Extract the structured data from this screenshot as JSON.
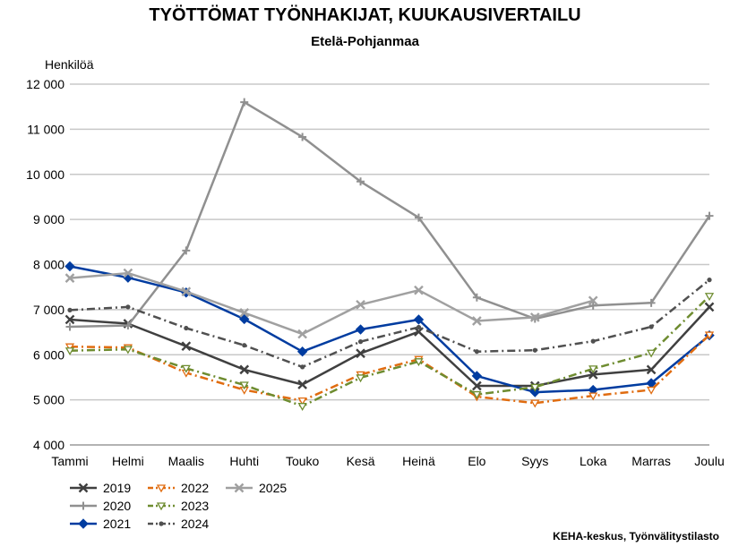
{
  "title": "TYÖTTÖMAT TYÖNHAKIJAT, KUUKAUSIVERTAILU",
  "subtitle": "Etelä-Pohjanmaa",
  "source": "KEHA-keskus, Työnvälitystilasto",
  "chart_data": {
    "type": "line",
    "title": "TYÖTTÖMAT TYÖNHAKIJAT, KUUKAUSIVERTAILU",
    "subtitle": "Etelä-Pohjanmaa",
    "ylabel": "Henkilöä",
    "xlabel": "",
    "ylim": [
      4000,
      12000
    ],
    "y_ticks": [
      4000,
      5000,
      6000,
      7000,
      8000,
      9000,
      10000,
      11000,
      12000
    ],
    "y_tick_labels": [
      "4 000",
      "5 000",
      "6 000",
      "7 000",
      "8 000",
      "9 000",
      "10 000",
      "11 000",
      "12 000"
    ],
    "grid": "horizontal",
    "legend_position": "bottom-left",
    "categories": [
      "Tammi",
      "Helmi",
      "Maalis",
      "Huhti",
      "Touko",
      "Kesä",
      "Heinä",
      "Elo",
      "Syys",
      "Loka",
      "Marras",
      "Joulu"
    ],
    "series": [
      {
        "name": "2019",
        "color": "#404040",
        "marker": "x",
        "dash": "solid",
        "values": [
          6780,
          6690,
          6190,
          5670,
          5340,
          6030,
          6510,
          5310,
          5310,
          5560,
          5670,
          7060
        ]
      },
      {
        "name": "2020",
        "color": "#909090",
        "marker": "plus",
        "dash": "solid",
        "values": [
          6620,
          6650,
          8310,
          11600,
          10830,
          9840,
          9040,
          7270,
          6800,
          7090,
          7150,
          9080
        ]
      },
      {
        "name": "2021",
        "color": "#003ca0",
        "marker": "diamond",
        "dash": "solid",
        "values": [
          7960,
          7710,
          7380,
          6790,
          6070,
          6560,
          6780,
          5530,
          5170,
          5220,
          5370,
          6430
        ]
      },
      {
        "name": "2022",
        "color": "#e06c10",
        "marker": "triangle",
        "dash": "dashdot",
        "values": [
          6180,
          6160,
          5600,
          5220,
          4980,
          5560,
          5900,
          5070,
          4930,
          5090,
          5220,
          6440
        ]
      },
      {
        "name": "2023",
        "color": "#6e8c30",
        "marker": "triangle",
        "dash": "dashdot",
        "values": [
          6090,
          6120,
          5700,
          5330,
          4860,
          5490,
          5850,
          5120,
          5280,
          5690,
          6040,
          7300
        ]
      },
      {
        "name": "2024",
        "color": "#505050",
        "marker": "dot",
        "dash": "dashdot",
        "values": [
          6990,
          7060,
          6590,
          6210,
          5730,
          6290,
          6610,
          6070,
          6100,
          6300,
          6620,
          7660
        ]
      },
      {
        "name": "2025",
        "color": "#a0a0a0",
        "marker": "x",
        "dash": "solid",
        "values": [
          7700,
          7810,
          7400,
          6930,
          6460,
          7110,
          7430,
          6750,
          6830,
          7200,
          null,
          null
        ]
      }
    ]
  }
}
